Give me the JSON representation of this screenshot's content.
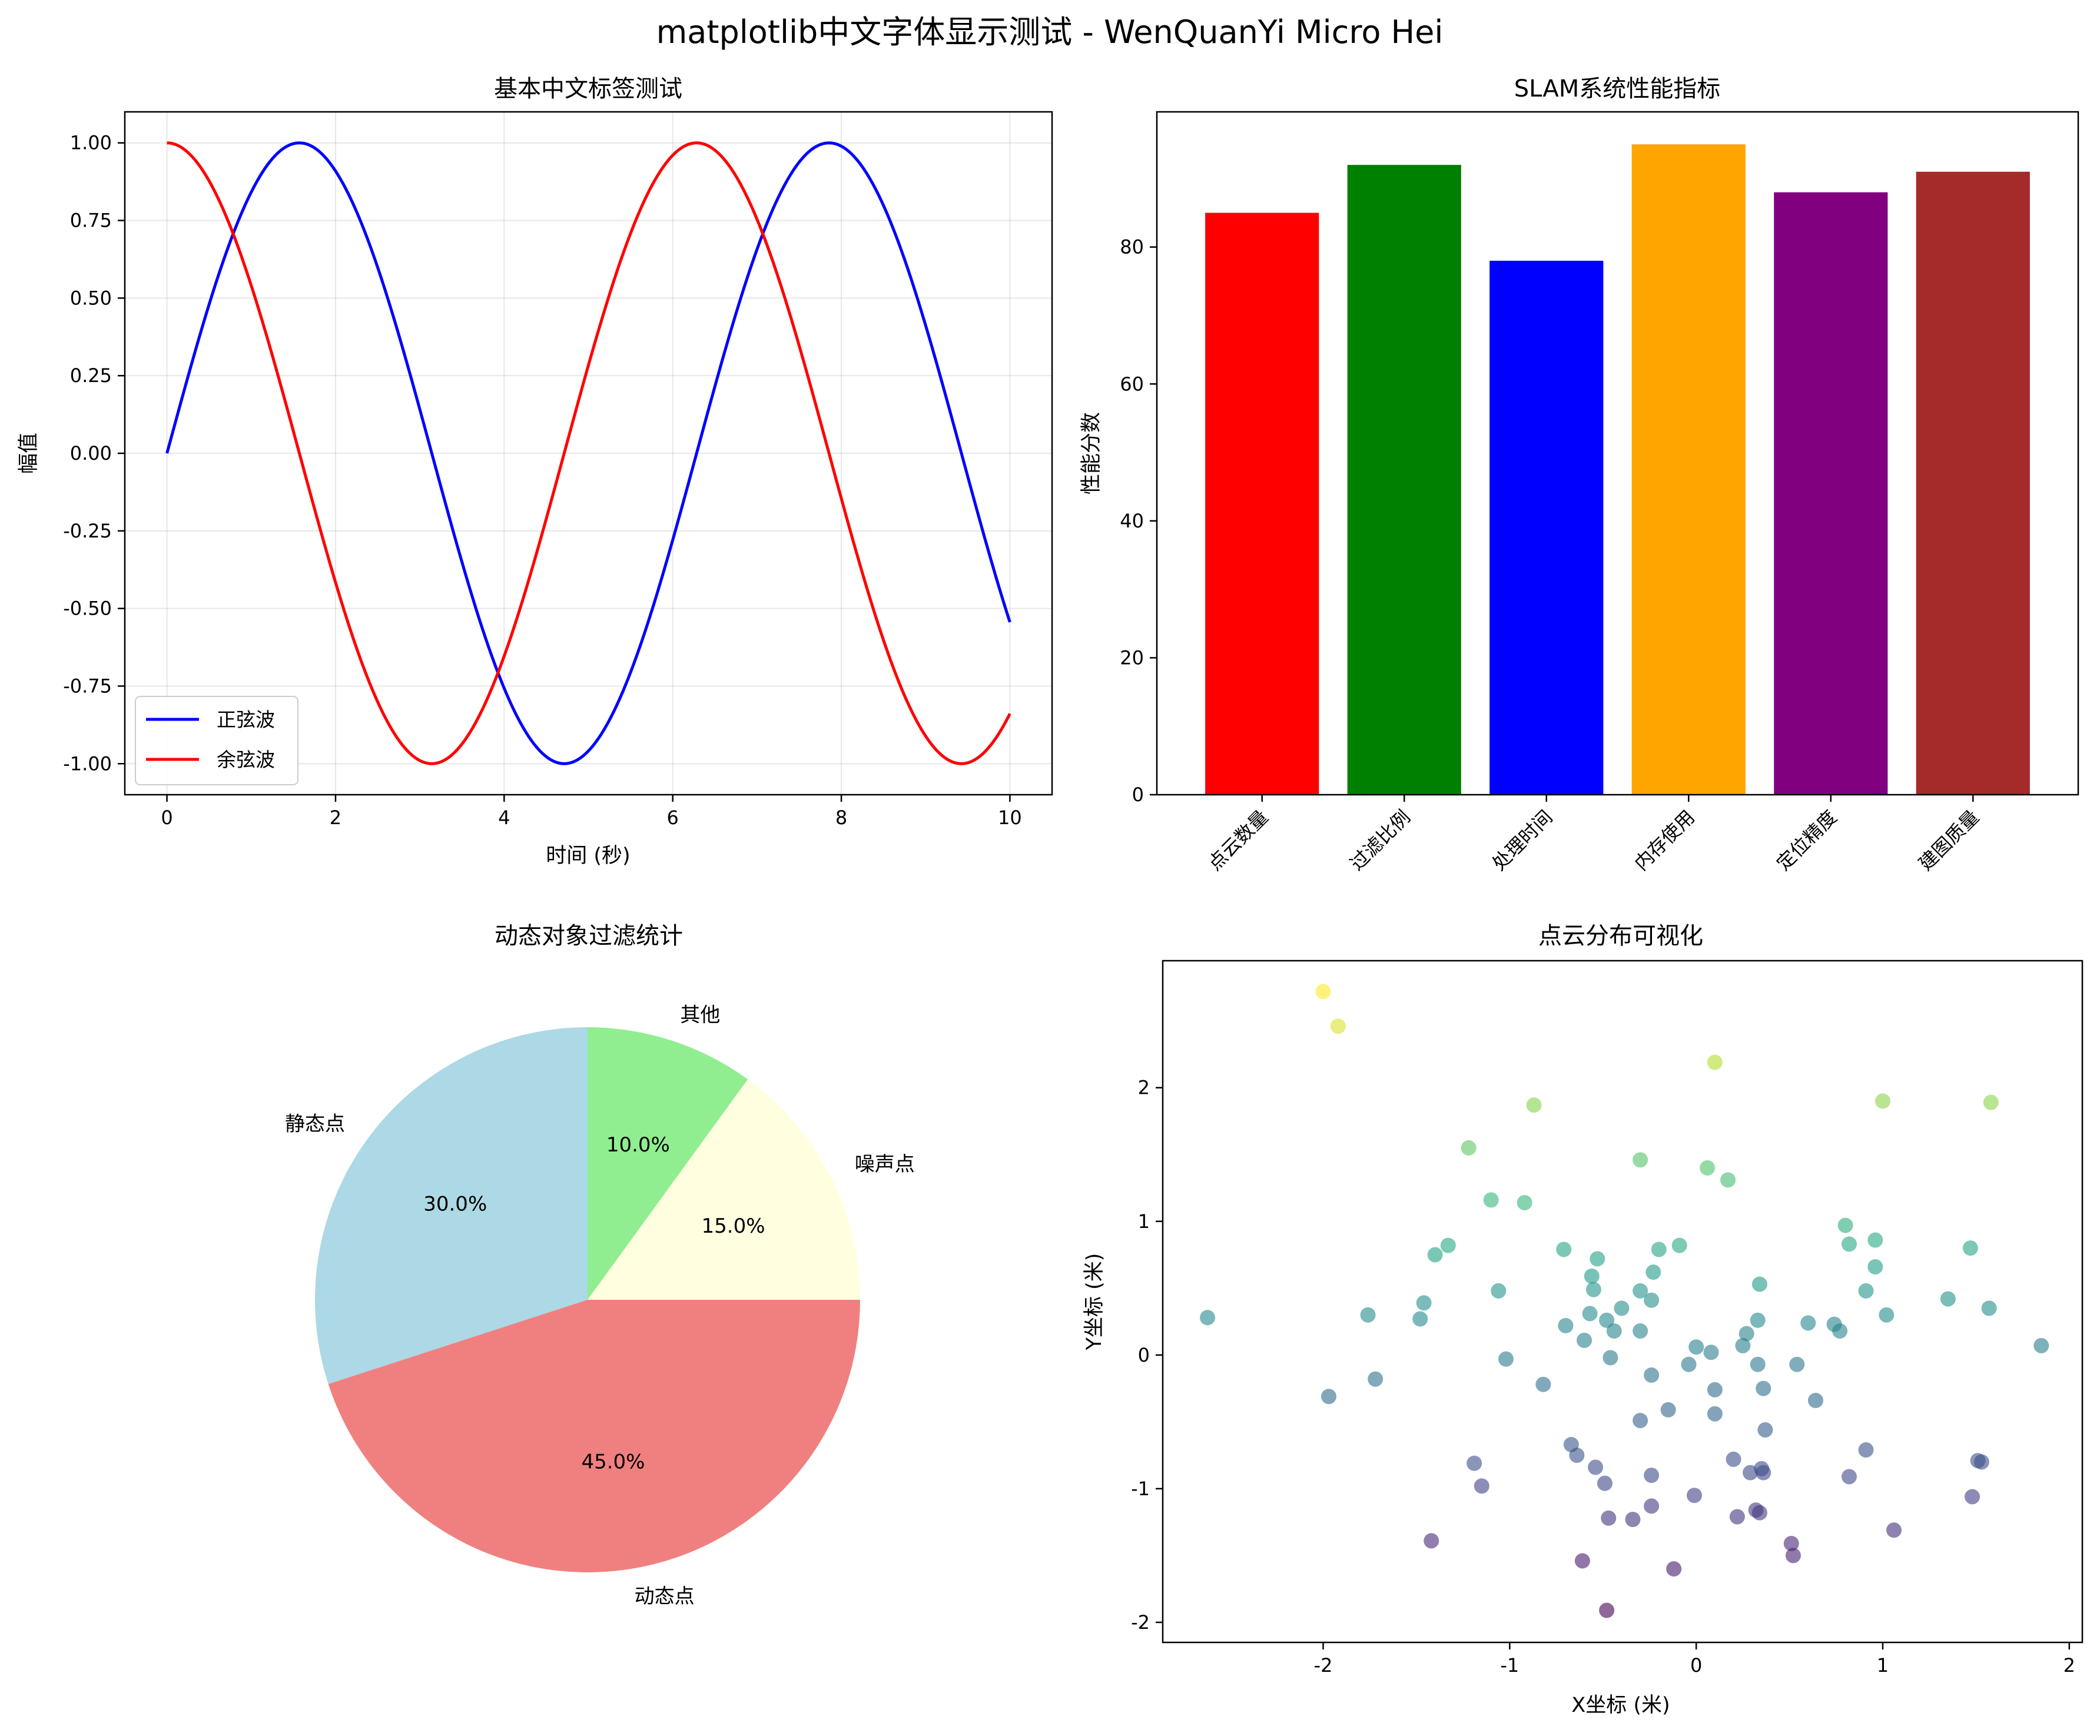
{
  "figure": {
    "suptitle": "matplotlib中文字体显示测试 - WenQuanYi Micro Hei"
  },
  "chart_data": [
    {
      "type": "line",
      "title": "基本中文标签测试",
      "xlabel": "时间 (秒)",
      "ylabel": "幅值",
      "xlim": [
        -0.5,
        10.5
      ],
      "ylim": [
        -1.1,
        1.1
      ],
      "xticks": [
        0,
        2,
        4,
        6,
        8,
        10
      ],
      "xtick_labels": [
        "0",
        "2",
        "4",
        "6",
        "8",
        "10"
      ],
      "yticks": [
        1.0,
        0.75,
        0.5,
        0.25,
        0.0,
        -0.25,
        -0.5,
        -0.75,
        -1.0
      ],
      "ytick_labels": [
        "1.00",
        "0.75",
        "0.50",
        "0.25",
        "0.00",
        "-0.25",
        "-0.50",
        "-0.75",
        "-1.00"
      ],
      "grid": true,
      "legend_position": "lower-left",
      "x_range": [
        0,
        10
      ],
      "series": [
        {
          "name": "正弦波",
          "function": "sin(x)",
          "color": "#0000ff"
        },
        {
          "name": "余弦波",
          "function": "cos(x)",
          "color": "#ff0000"
        }
      ]
    },
    {
      "type": "bar",
      "title": "SLAM系统性能指标",
      "ylabel": "性能分数",
      "categories": [
        "点云数量",
        "过滤比例",
        "处理时间",
        "内存使用",
        "定位精度",
        "建图质量"
      ],
      "values": [
        85,
        92,
        78,
        95,
        88,
        91
      ],
      "colors": [
        "#ff0000",
        "#008000",
        "#0000ff",
        "#ffa500",
        "#800080",
        "#a52a2a"
      ],
      "ylim": [
        0,
        99.75
      ],
      "yticks": [
        0,
        20,
        40,
        60,
        80
      ],
      "ytick_labels": [
        "0",
        "20",
        "40",
        "60",
        "80"
      ],
      "grid": false
    },
    {
      "type": "pie",
      "title": "动态对象过滤统计",
      "labels": [
        "静态点",
        "动态点",
        "噪声点",
        "其他"
      ],
      "values": [
        30,
        45,
        15,
        10
      ],
      "pct_labels": [
        "30.0%",
        "45.0%",
        "15.0%",
        "10.0%"
      ],
      "colors": [
        "#add8e6",
        "#f08080",
        "#ffffe0",
        "#90ee90"
      ],
      "start_angle": 90
    },
    {
      "type": "scatter",
      "title": "点云分布可视化",
      "xlabel": "X坐标 (米)",
      "ylabel": "Y坐标 (米)",
      "xlim": [
        -2.86,
        2.07
      ],
      "ylim": [
        -2.15,
        2.95
      ],
      "xticks": [
        -2,
        -1,
        0,
        1,
        2
      ],
      "xtick_labels": [
        "-2",
        "-1",
        "0",
        "1",
        "2"
      ],
      "yticks": [
        2,
        1,
        0,
        -1,
        -2
      ],
      "ytick_labels": [
        "2",
        "1",
        "0",
        "-1",
        "-2"
      ],
      "grid": false,
      "colormap": "viridis",
      "color_by": "y",
      "alpha": 0.6,
      "points": [
        [
          -2.0,
          2.72
        ],
        [
          -1.92,
          2.46
        ],
        [
          0.1,
          2.19
        ],
        [
          -0.87,
          1.87
        ],
        [
          1.0,
          1.9
        ],
        [
          1.58,
          1.89
        ],
        [
          -1.22,
          1.55
        ],
        [
          -0.3,
          1.46
        ],
        [
          0.06,
          1.4
        ],
        [
          0.17,
          1.31
        ],
        [
          -1.1,
          1.16
        ],
        [
          -0.92,
          1.14
        ],
        [
          0.8,
          0.97
        ],
        [
          0.96,
          0.86
        ],
        [
          0.82,
          0.83
        ],
        [
          1.47,
          0.8
        ],
        [
          -1.33,
          0.82
        ],
        [
          -1.4,
          0.75
        ],
        [
          -0.71,
          0.79
        ],
        [
          -0.2,
          0.79
        ],
        [
          -0.09,
          0.82
        ],
        [
          -0.53,
          0.72
        ],
        [
          0.96,
          0.66
        ],
        [
          -0.56,
          0.59
        ],
        [
          -0.23,
          0.62
        ],
        [
          -0.55,
          0.49
        ],
        [
          -0.3,
          0.48
        ],
        [
          0.34,
          0.53
        ],
        [
          0.91,
          0.48
        ],
        [
          -1.06,
          0.48
        ],
        [
          -1.46,
          0.39
        ],
        [
          -0.24,
          0.41
        ],
        [
          1.35,
          0.42
        ],
        [
          1.57,
          0.35
        ],
        [
          -0.4,
          0.35
        ],
        [
          -0.57,
          0.31
        ],
        [
          -1.76,
          0.3
        ],
        [
          1.02,
          0.3
        ],
        [
          -2.62,
          0.28
        ],
        [
          -1.48,
          0.27
        ],
        [
          -0.48,
          0.26
        ],
        [
          0.33,
          0.26
        ],
        [
          0.6,
          0.24
        ],
        [
          0.74,
          0.23
        ],
        [
          -0.7,
          0.22
        ],
        [
          -0.44,
          0.18
        ],
        [
          -0.3,
          0.18
        ],
        [
          0.77,
          0.18
        ],
        [
          0.27,
          0.16
        ],
        [
          -0.6,
          0.11
        ],
        [
          0.25,
          0.07
        ],
        [
          0.0,
          0.06
        ],
        [
          0.08,
          0.02
        ],
        [
          1.85,
          0.07
        ],
        [
          -1.02,
          -0.03
        ],
        [
          -0.46,
          -0.02
        ],
        [
          -0.04,
          -0.07
        ],
        [
          0.33,
          -0.07
        ],
        [
          0.54,
          -0.07
        ],
        [
          -0.24,
          -0.15
        ],
        [
          -0.82,
          -0.22
        ],
        [
          -1.72,
          -0.18
        ],
        [
          0.36,
          -0.25
        ],
        [
          0.1,
          -0.26
        ],
        [
          -1.97,
          -0.31
        ],
        [
          0.64,
          -0.34
        ],
        [
          -0.15,
          -0.41
        ],
        [
          0.1,
          -0.44
        ],
        [
          -0.3,
          -0.49
        ],
        [
          0.37,
          -0.56
        ],
        [
          -0.67,
          -0.67
        ],
        [
          0.91,
          -0.71
        ],
        [
          -0.64,
          -0.75
        ],
        [
          0.2,
          -0.78
        ],
        [
          1.51,
          -0.79
        ],
        [
          1.53,
          -0.8
        ],
        [
          -1.19,
          -0.81
        ],
        [
          -0.54,
          -0.84
        ],
        [
          0.35,
          -0.85
        ],
        [
          0.29,
          -0.88
        ],
        [
          0.36,
          -0.88
        ],
        [
          -0.24,
          -0.9
        ],
        [
          0.82,
          -0.91
        ],
        [
          -0.49,
          -0.96
        ],
        [
          -1.15,
          -0.98
        ],
        [
          -0.01,
          -1.05
        ],
        [
          1.48,
          -1.06
        ],
        [
          -0.24,
          -1.13
        ],
        [
          0.32,
          -1.16
        ],
        [
          0.34,
          -1.18
        ],
        [
          0.22,
          -1.21
        ],
        [
          -0.34,
          -1.23
        ],
        [
          -0.47,
          -1.22
        ],
        [
          1.06,
          -1.31
        ],
        [
          -1.42,
          -1.39
        ],
        [
          0.51,
          -1.41
        ],
        [
          0.52,
          -1.5
        ],
        [
          -0.61,
          -1.54
        ],
        [
          -0.12,
          -1.6
        ],
        [
          -0.48,
          -1.91
        ]
      ]
    }
  ]
}
